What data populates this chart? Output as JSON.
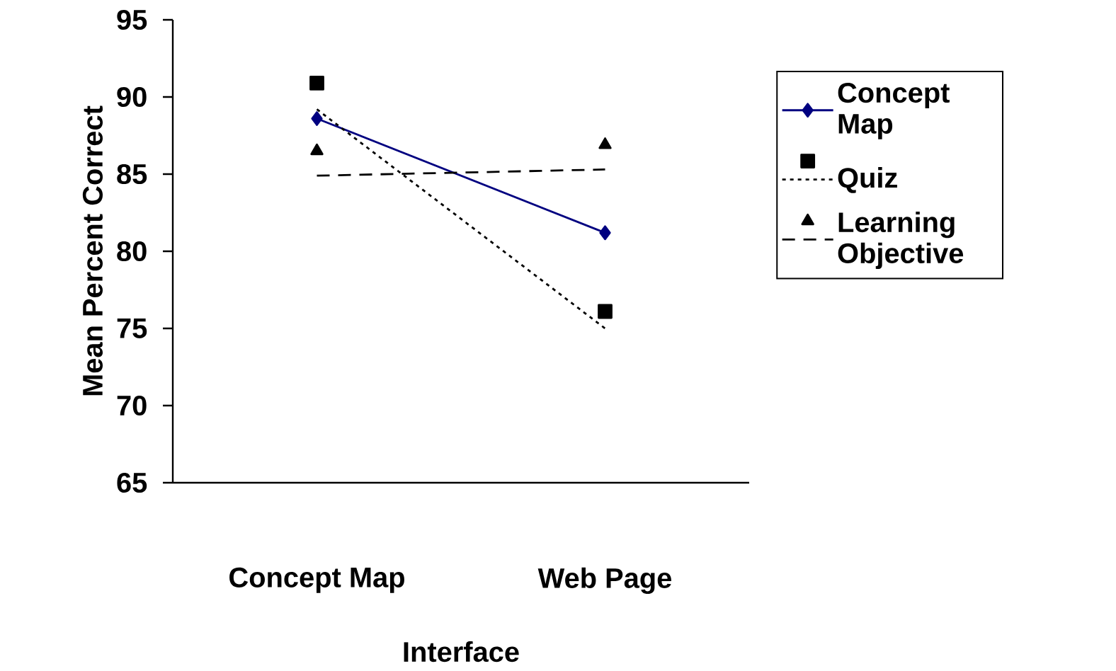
{
  "chart_data": {
    "type": "line",
    "xlabel": "Interface",
    "ylabel": "Mean Percent Correct",
    "categories": [
      "Concept Map",
      "Web Page"
    ],
    "ylim": [
      65,
      95
    ],
    "yticks": [
      65,
      70,
      75,
      80,
      85,
      90,
      95
    ],
    "legend": "right",
    "series": [
      {
        "name": "Concept Map",
        "color": "#000080",
        "marker": "diamond",
        "line_style": "solid",
        "values": [
          88.6,
          81.2
        ]
      },
      {
        "type": "scatter",
        "color": "#000000",
        "marker": "square",
        "values": [
          90.9,
          76.1
        ]
      },
      {
        "name": "Quiz",
        "color": "#000000",
        "marker": "none",
        "line_style": "dotted",
        "values": [
          89.2,
          75.0
        ]
      },
      {
        "type": "scatter",
        "color": "#000000",
        "marker": "triangle",
        "values": [
          86.5,
          86.9
        ]
      },
      {
        "name": "Learning Objective",
        "color": "#000000",
        "marker": "none",
        "line_style": "dashed",
        "values": [
          84.9,
          85.3
        ]
      }
    ]
  }
}
